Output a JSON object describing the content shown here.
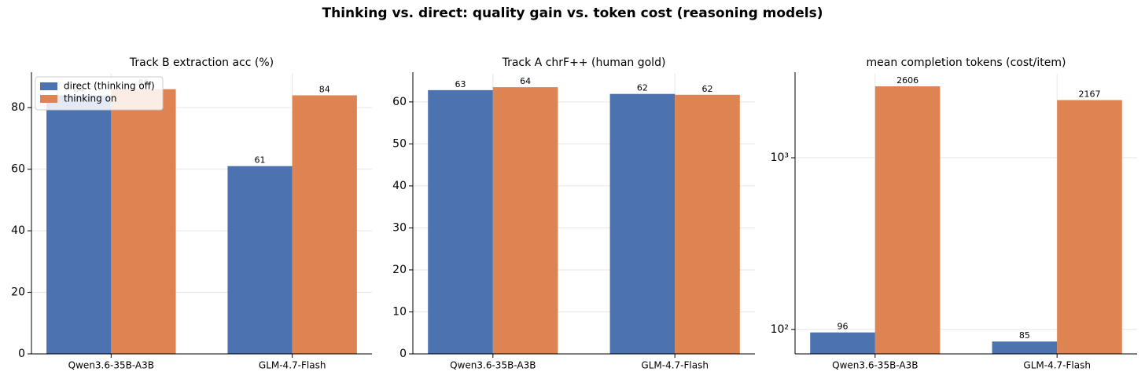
{
  "title": "Thinking vs. direct: quality gain vs. token cost (reasoning models)",
  "chart_data": [
    {
      "type": "bar",
      "title": "Track B extraction acc (%)",
      "categories": [
        "Qwen3.6-35B-A3B",
        "GLM-4.7-Flash"
      ],
      "series": [
        {
          "name": "direct (thinking off)",
          "color": "#4c72b0",
          "values": [
            84,
            61
          ]
        },
        {
          "name": "thinking on",
          "color": "#dd8452",
          "values": [
            86,
            84
          ]
        }
      ],
      "ylim": [
        0,
        91
      ],
      "yticks": [
        0,
        20,
        40,
        60,
        80
      ],
      "grid": true,
      "legend": "upper left"
    },
    {
      "type": "bar",
      "title": "Track A chrF++ (human gold)",
      "categories": [
        "Qwen3.6-35B-A3B",
        "GLM-4.7-Flash"
      ],
      "series": [
        {
          "color": "#4c72b0",
          "values": [
            62.8,
            61.9
          ],
          "value_labels": [
            "63",
            "62"
          ]
        },
        {
          "color": "#dd8452",
          "values": [
            63.5,
            61.7
          ],
          "value_labels": [
            "64",
            "62"
          ]
        }
      ],
      "ylim": [
        0,
        66.7
      ],
      "yticks": [
        0,
        10,
        20,
        30,
        40,
        50,
        60
      ],
      "grid": true
    },
    {
      "type": "bar",
      "title": "mean completion tokens (cost/item)",
      "categories": [
        "Qwen3.6-35B-A3B",
        "GLM-4.7-Flash"
      ],
      "series": [
        {
          "color": "#4c72b0",
          "values": [
            96,
            85
          ]
        },
        {
          "color": "#dd8452",
          "values": [
            2606,
            2167
          ]
        }
      ],
      "ylim": [
        72,
        3085
      ],
      "yticks": [
        {
          "value": 100,
          "label": "10²"
        },
        {
          "value": 1000,
          "label": "10³"
        }
      ],
      "log_y": true,
      "grid": true
    }
  ]
}
